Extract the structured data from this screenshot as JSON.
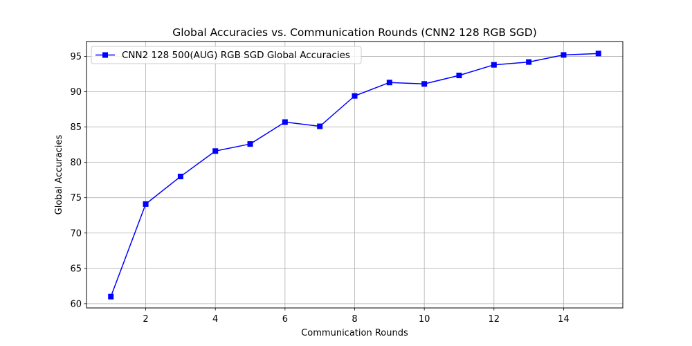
{
  "chart_data": {
    "type": "line",
    "title": "Global Accuracies vs. Communication Rounds (CNN2 128 RGB SGD)",
    "xlabel": "Communication Rounds",
    "ylabel": "Global Accuracies",
    "xlim": [
      0.3,
      15.7
    ],
    "ylim": [
      59.4,
      97.1
    ],
    "xticks": [
      2,
      4,
      6,
      8,
      10,
      12,
      14
    ],
    "yticks": [
      60,
      65,
      70,
      75,
      80,
      85,
      90,
      95
    ],
    "grid": true,
    "legend_position": "upper-left",
    "series": [
      {
        "name": "CNN2 128 500(AUG) RGB SGD Global Accuracies",
        "color": "#0000ff",
        "marker": "square",
        "x": [
          1,
          2,
          3,
          4,
          5,
          6,
          7,
          8,
          9,
          10,
          11,
          12,
          13,
          14,
          15
        ],
        "y": [
          61.0,
          74.1,
          78.0,
          81.6,
          82.6,
          85.7,
          85.1,
          89.4,
          91.3,
          91.1,
          92.3,
          93.8,
          94.2,
          95.2,
          95.4
        ]
      }
    ]
  }
}
